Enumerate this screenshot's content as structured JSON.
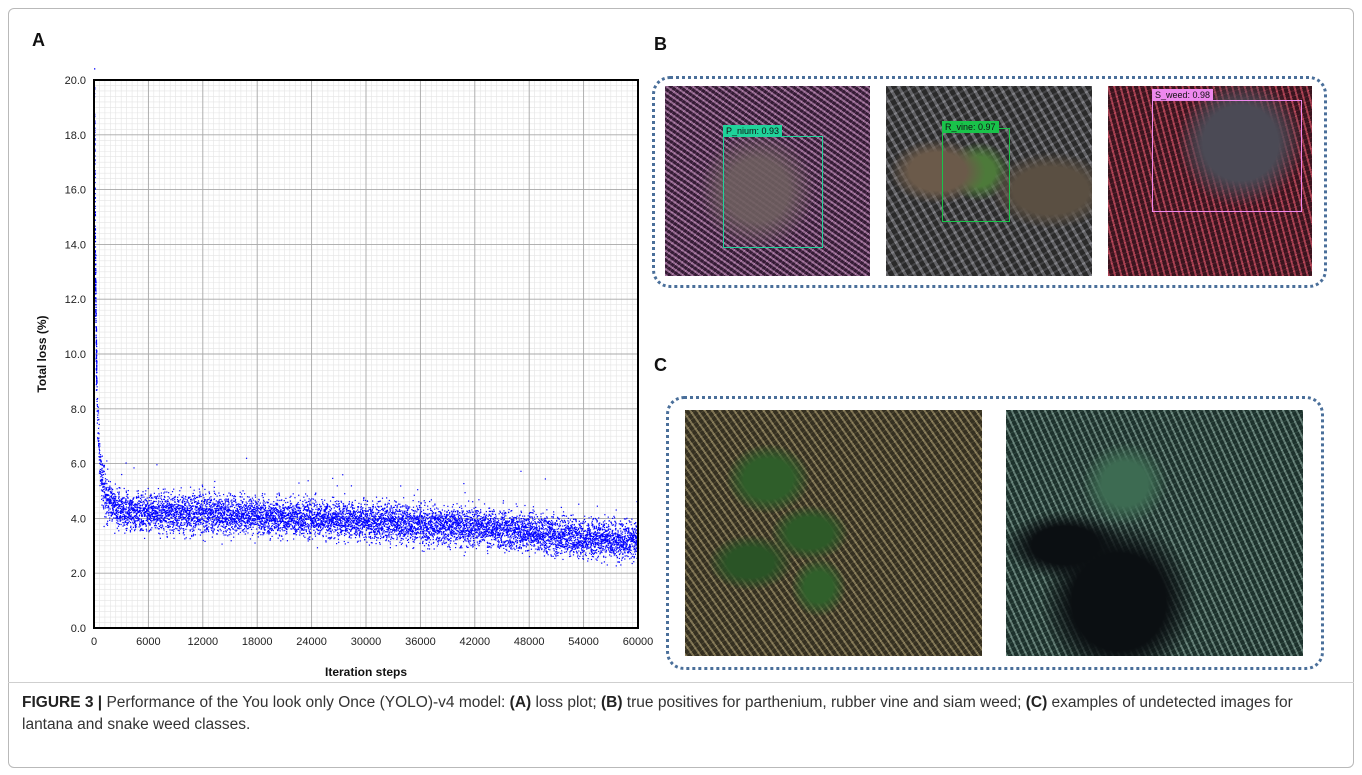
{
  "panels": {
    "a": "A",
    "b": "B",
    "c": "C"
  },
  "chart_data": {
    "type": "scatter",
    "xlabel": "Iteration steps",
    "ylabel": "Total loss (%)",
    "xlim": [
      0,
      60000
    ],
    "ylim": [
      0,
      20
    ],
    "x_ticks": [
      "0",
      "6000",
      "12000",
      "18000",
      "24000",
      "30000",
      "36000",
      "42000",
      "48000",
      "54000",
      "60000"
    ],
    "y_ticks": [
      "0.0",
      "2.0",
      "4.0",
      "6.0",
      "8.0",
      "10.0",
      "12.0",
      "14.0",
      "16.0",
      "18.0",
      "20.0"
    ],
    "grid": true,
    "series": [
      {
        "color": "#0000ff",
        "x": [
          0,
          100,
          200,
          300,
          500,
          800,
          1200,
          2000,
          3000,
          6000,
          12000,
          18000,
          24000,
          30000,
          36000,
          42000,
          48000,
          54000,
          60000
        ],
        "y": [
          19.5,
          13.0,
          10.0,
          8.0,
          6.5,
          5.3,
          4.8,
          4.5,
          4.3,
          4.2,
          4.2,
          4.1,
          4.0,
          3.9,
          3.8,
          3.7,
          3.5,
          3.3,
          3.2
        ]
      }
    ]
  },
  "detections": {
    "parthenium": "P_nium: 0.93",
    "rubber_vine": "R_vine: 0.97",
    "siam_weed": "S_weed: 0.98"
  },
  "colors": {
    "series": "#0000ff",
    "dotted_border": "#4a6f9a",
    "tag_parthenium": "#1fd39a",
    "tag_rubber_vine": "#19c34a",
    "tag_siam_weed": "#ee88ee"
  },
  "caption": {
    "label": "FIGURE 3 |",
    "part1": " Performance of the You look only Once (YOLO)-v4 model: ",
    "a": "(A)",
    "part2": " loss plot; ",
    "b": "(B)",
    "part3": " true positives for parthenium, rubber vine and siam weed; ",
    "c": "(C)",
    "part4": " examples of undetected images for lantana and snake weed classes."
  }
}
